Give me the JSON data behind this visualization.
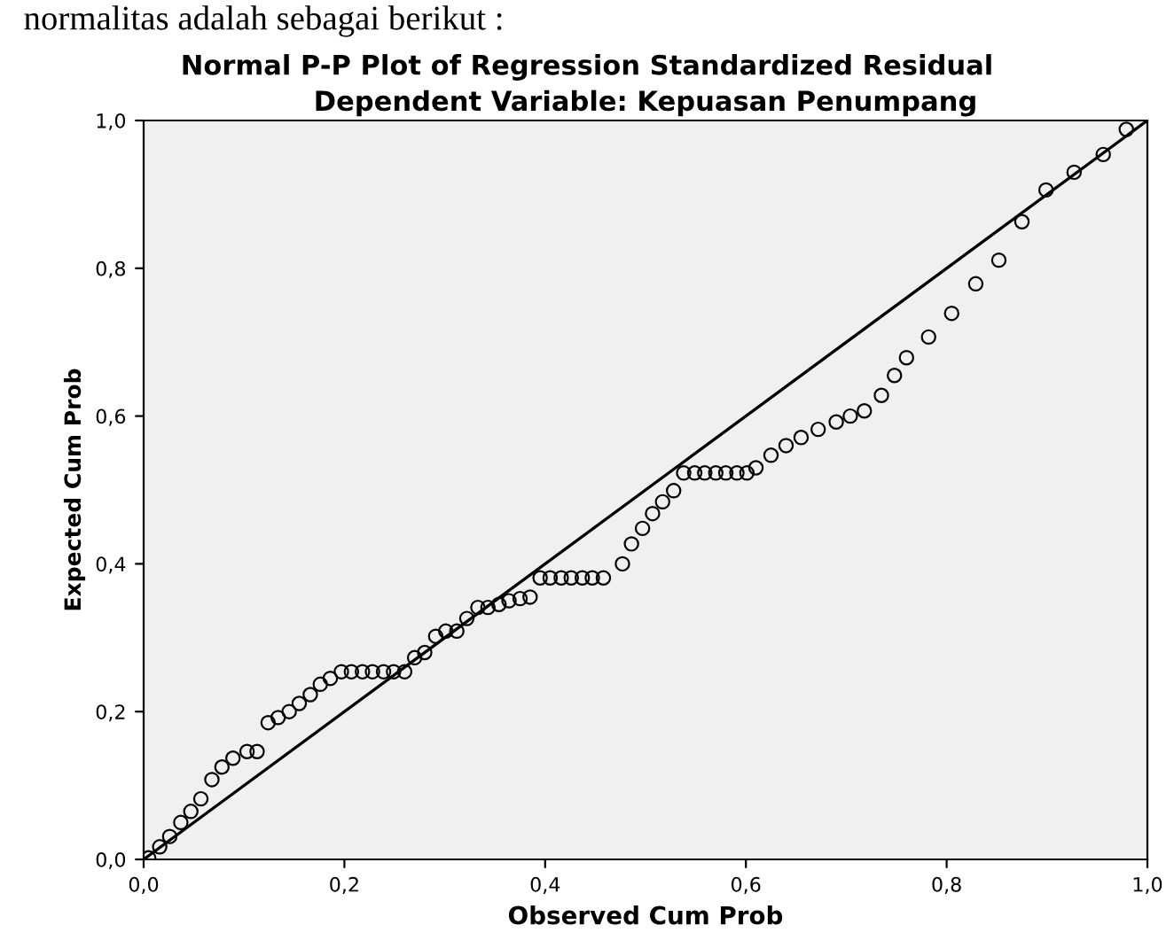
{
  "chart_data": {
    "type": "scatter",
    "title": "Normal P-P Plot of Regression Standardized Residual",
    "subtitle": "Dependent Variable: Kepuasan Penumpang",
    "xlabel": "Observed Cum Prob",
    "ylabel": "Expected Cum Prob",
    "annotations": [
      "normalitas adalah sebagai berikut :"
    ],
    "xlim": [
      0,
      1
    ],
    "ylim": [
      0,
      1
    ],
    "xticks": [
      {
        "value": 0,
        "label": "0,0"
      },
      {
        "value": 0.2,
        "label": "0,2"
      },
      {
        "value": 0.4,
        "label": "0,4"
      },
      {
        "value": 0.6,
        "label": "0,6"
      },
      {
        "value": 0.8,
        "label": "0,8"
      },
      {
        "value": 1,
        "label": "1,0"
      }
    ],
    "yticks": [
      {
        "value": 0,
        "label": "0,0"
      },
      {
        "value": 0.2,
        "label": "0,2"
      },
      {
        "value": 0.4,
        "label": "0,4"
      },
      {
        "value": 0.6,
        "label": "0,6"
      },
      {
        "value": 0.8,
        "label": "0,8"
      },
      {
        "value": 1,
        "label": "1,0"
      }
    ],
    "grid": false,
    "legend": false,
    "series": [
      {
        "marker": "circle",
        "color": "#000000",
        "x": [
          0.005,
          0.016,
          0.026,
          0.037,
          0.047,
          0.057,
          0.068,
          0.078,
          0.089,
          0.103,
          0.113,
          0.124,
          0.134,
          0.145,
          0.155,
          0.166,
          0.176,
          0.186,
          0.197,
          0.207,
          0.218,
          0.228,
          0.239,
          0.249,
          0.26,
          0.27,
          0.28,
          0.291,
          0.301,
          0.312,
          0.322,
          0.333,
          0.343,
          0.354,
          0.364,
          0.375,
          0.385,
          0.395,
          0.405,
          0.416,
          0.426,
          0.437,
          0.447,
          0.458,
          0.477,
          0.486,
          0.497,
          0.507,
          0.517,
          0.528,
          0.538,
          0.549,
          0.559,
          0.57,
          0.58,
          0.591,
          0.601,
          0.61,
          0.625,
          0.64,
          0.655,
          0.672,
          0.69,
          0.704,
          0.718,
          0.735,
          0.748,
          0.76,
          0.782,
          0.805,
          0.829,
          0.852,
          0.875,
          0.899,
          0.927,
          0.956,
          0.979
        ],
        "values": [
          0.002,
          0.017,
          0.031,
          0.05,
          0.065,
          0.082,
          0.108,
          0.125,
          0.137,
          0.146,
          0.146,
          0.185,
          0.192,
          0.2,
          0.211,
          0.223,
          0.237,
          0.245,
          0.254,
          0.254,
          0.254,
          0.254,
          0.254,
          0.254,
          0.254,
          0.273,
          0.28,
          0.302,
          0.309,
          0.309,
          0.326,
          0.341,
          0.341,
          0.345,
          0.35,
          0.353,
          0.355,
          0.381,
          0.381,
          0.381,
          0.381,
          0.381,
          0.381,
          0.381,
          0.4,
          0.427,
          0.448,
          0.468,
          0.484,
          0.499,
          0.523,
          0.523,
          0.523,
          0.523,
          0.523,
          0.523,
          0.523,
          0.53,
          0.547,
          0.56,
          0.571,
          0.582,
          0.592,
          0.6,
          0.607,
          0.628,
          0.655,
          0.679,
          0.707,
          0.739,
          0.779,
          0.811,
          0.863,
          0.906,
          0.93,
          0.954,
          0.988
        ]
      },
      {
        "type": "line",
        "color": "#000000",
        "x": [
          0,
          1
        ],
        "values": [
          0,
          1
        ],
        "line_style": "solid"
      }
    ]
  }
}
